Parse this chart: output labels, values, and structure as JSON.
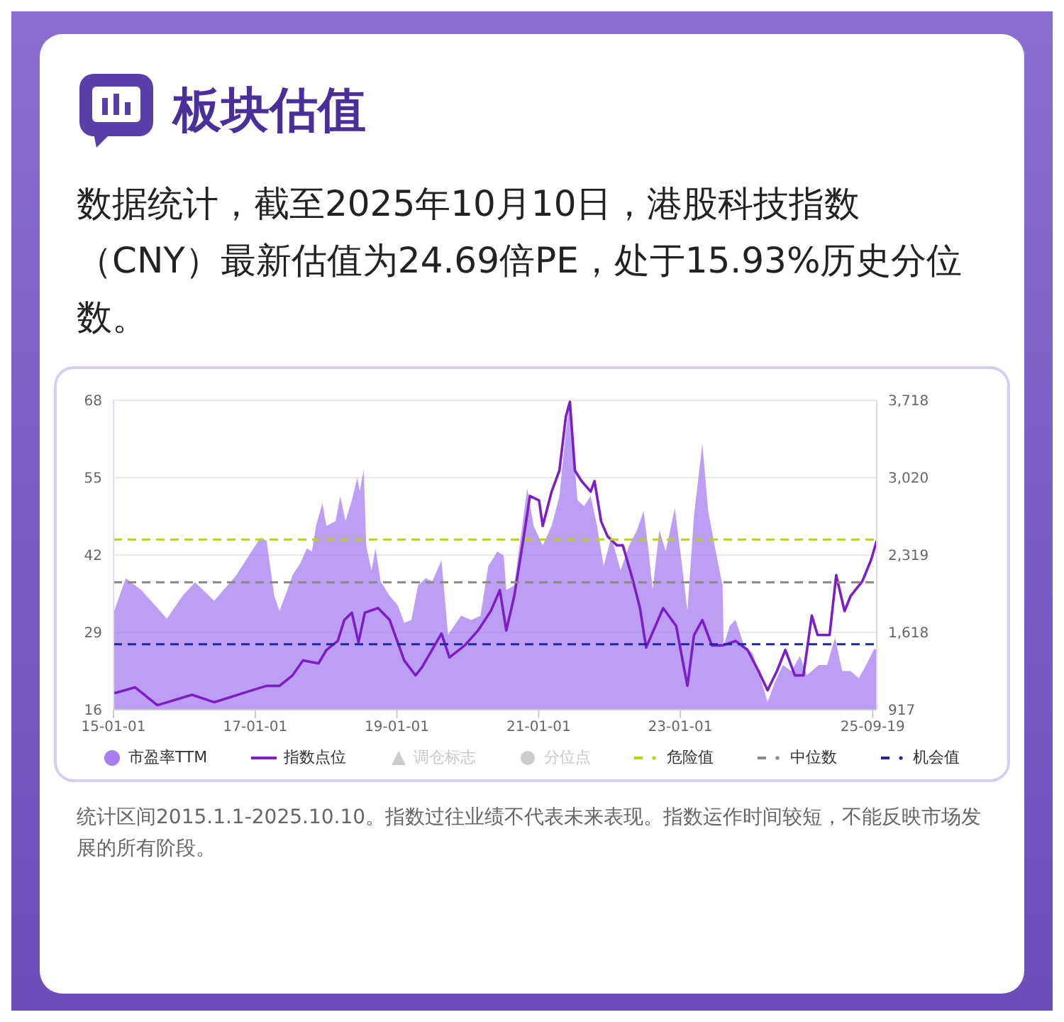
{
  "chart_data": {
    "type": "area",
    "title": "板块估值",
    "subtitle": "数据统计，截至2025年10月10日，港股科技指数（CNY）最新估值为24.69倍PE，处于15.93%历史分位数。",
    "annotations": [
      "统计区间2015.1.1-2025.10.10。指数过往业绩不代表未来表现。指数运作时间较短，不能反映市场发展的所有阶段。"
    ],
    "xlim": [
      "2015-01-01",
      "2025-10-10"
    ],
    "xticks": [
      {
        "value": "2015-01-01",
        "label": "15-01-01"
      },
      {
        "value": "2017-01-01",
        "label": "17-01-01"
      },
      {
        "value": "2019-01-01",
        "label": "19-01-01"
      },
      {
        "value": "2021-01-01",
        "label": "21-01-01"
      },
      {
        "value": "2023-01-01",
        "label": "23-01-01"
      },
      {
        "value": "2025-09-19",
        "label": "25-09-19"
      }
    ],
    "ylim": [
      16,
      68
    ],
    "yticks": [
      16,
      29,
      42,
      55,
      68
    ],
    "y2lim": [
      917,
      3718
    ],
    "y2ticks": [
      917,
      {
        "value": 1618,
        "label": "1,618"
      },
      {
        "value": 2319,
        "label": "2,319"
      },
      {
        "value": 3020,
        "label": "3,020"
      },
      {
        "value": 3718,
        "label": "3,718"
      }
    ],
    "grid": "y",
    "legend": "bottom",
    "series": [
      {
        "name": "市盈率TTM",
        "color": "#a67ff0",
        "x": [
          "2015-01-05",
          "2015-03-05",
          "2015-05-25",
          "2015-08-15",
          "2015-10-03",
          "2015-12-22",
          "2016-02-26",
          "2016-06-03",
          "2016-09-25",
          "2017-01-27",
          "2017-02-28",
          "2017-04-09",
          "2017-05-06",
          "2017-06-15",
          "2017-07-12",
          "2017-08-21",
          "2017-09-24",
          "2017-10-20",
          "2017-11-10",
          "2017-12-13",
          "2018-01-03",
          "2018-02-19",
          "2018-03-15",
          "2018-04-11",
          "2018-05-14",
          "2018-06-11",
          "2018-06-24",
          "2018-07-14",
          "2018-07-27",
          "2018-08-23",
          "2018-09-13",
          "2018-10-09",
          "2018-11-25",
          "2019-01-05",
          "2019-02-08",
          "2019-03-17",
          "2019-04-20",
          "2019-05-30",
          "2019-07-03",
          "2019-08-19",
          "2019-09-22",
          "2019-11-28",
          "2020-01-20",
          "2020-03-07",
          "2020-04-16",
          "2020-06-02",
          "2020-07-05",
          "2020-07-18",
          "2020-08-28",
          "2020-10-01",
          "2020-11-03",
          "2020-12-06",
          "2021-01-22",
          "2021-03-09",
          "2021-04-18",
          "2021-05-21",
          "2021-06-11",
          "2021-06-24",
          "2021-07-20",
          "2021-08-23",
          "2021-09-26",
          "2021-10-29",
          "2021-12-02",
          "2022-01-11",
          "2022-02-27",
          "2022-04-13",
          "2022-05-23",
          "2022-06-26",
          "2022-07-22",
          "2022-08-12",
          "2022-09-15",
          "2022-10-18",
          "2022-12-04",
          "2023-01-07",
          "2023-02-07",
          "2023-03-13",
          "2023-04-25",
          "2023-05-25",
          "2023-07-07",
          "2023-08-07",
          "2023-08-13",
          "2023-09-13",
          "2023-10-13",
          "2023-11-26",
          "2024-01-08",
          "2024-02-14",
          "2024-03-26",
          "2024-05-08",
          "2024-06-14",
          "2024-07-26",
          "2024-09-09",
          "2024-10-15",
          "2024-12-15",
          "2025-01-27",
          "2025-03-09",
          "2025-04-15",
          "2025-05-28",
          "2025-07-10",
          "2025-08-16",
          "2025-09-28",
          "2025-10-10"
        ],
        "values": [
          32.6,
          38.1,
          36.1,
          33.1,
          31.3,
          35.1,
          37.4,
          34.3,
          38.6,
          44.9,
          44.4,
          35.1,
          32.6,
          36.1,
          38.6,
          40.6,
          43.1,
          42.6,
          46.9,
          50.7,
          46.9,
          47.7,
          51.9,
          47.7,
          51.2,
          55,
          52.7,
          56.4,
          43.6,
          39.4,
          43.1,
          37.6,
          35.1,
          33.6,
          30.6,
          31.1,
          36.9,
          38.1,
          37.6,
          41.1,
          28.6,
          31.8,
          31.1,
          31.8,
          40.1,
          42.6,
          41.9,
          36.1,
          36.9,
          45.1,
          53.2,
          46.9,
          43.6,
          46.9,
          51.9,
          62.7,
          67.8,
          62,
          51.2,
          50.2,
          51.9,
          46.9,
          40.1,
          45.1,
          39.4,
          43.6,
          46.2,
          49.4,
          42.6,
          36.1,
          46.2,
          42.6,
          49.9,
          41.1,
          32.6,
          48.7,
          60.7,
          49.4,
          41.9,
          36.9,
          26.8,
          30.1,
          31.1,
          26.8,
          25.5,
          21.8,
          17.3,
          21,
          23.5,
          22.5,
          25,
          21.8,
          23.5,
          23.5,
          28.1,
          22.5,
          22.5,
          21.3,
          23.5,
          26.3,
          26
        ]
      },
      {
        "name": "指数点位",
        "type": "line",
        "axis": "y2",
        "color": "#7b1fc4",
        "x": [
          "2015-01-05",
          "2015-04-22",
          "2015-08-15",
          "2016-02-10",
          "2016-06-03",
          "2016-12-15",
          "2017-02-28",
          "2017-05-06",
          "2017-07-12",
          "2017-09-04",
          "2017-11-23",
          "2018-01-03",
          "2018-03-02",
          "2018-04-05",
          "2018-05-14",
          "2018-06-17",
          "2018-07-20",
          "2018-09-26",
          "2018-11-25",
          "2018-12-28",
          "2019-02-08",
          "2019-04-07",
          "2019-05-10",
          "2019-08-19",
          "2019-09-29",
          "2019-12-17",
          "2020-02-23",
          "2020-04-29",
          "2020-06-15",
          "2020-07-18",
          "2020-08-28",
          "2020-10-13",
          "2020-11-17",
          "2021-01-03",
          "2021-01-22",
          "2021-03-09",
          "2021-04-18",
          "2021-05-21",
          "2021-06-11",
          "2021-07-07",
          "2021-08-10",
          "2021-09-26",
          "2021-10-16",
          "2021-11-19",
          "2021-12-22",
          "2022-02-08",
          "2022-03-11",
          "2022-05-03",
          "2022-06-07",
          "2022-07-09",
          "2022-10-05",
          "2022-12-11",
          "2023-01-13",
          "2023-02-07",
          "2023-03-13",
          "2023-04-25",
          "2023-06-13",
          "2023-08-07",
          "2023-10-13",
          "2023-12-14",
          "2024-02-08",
          "2024-03-26",
          "2024-05-14",
          "2024-06-26",
          "2024-08-14",
          "2024-09-27",
          "2024-11-09",
          "2024-12-09",
          "2025-02-09",
          "2025-03-15",
          "2025-04-27",
          "2025-05-28",
          "2025-07-28",
          "2025-09-10",
          "2025-10-10"
        ],
        "values": [
          1066,
          1120,
          958,
          1052,
          985,
          1093,
          1133,
          1133,
          1228,
          1363,
          1336,
          1458,
          1539,
          1729,
          1796,
          1526,
          1796,
          1837,
          1729,
          1566,
          1363,
          1228,
          1300,
          1607,
          1390,
          1499,
          1634,
          1810,
          2000,
          1634,
          1945,
          2446,
          2852,
          2811,
          2581,
          2892,
          3082,
          3569,
          3704,
          3082,
          2987,
          2892,
          2987,
          2622,
          2487,
          2405,
          2405,
          2081,
          1840,
          1480,
          1837,
          1675,
          1363,
          1133,
          1593,
          1729,
          1499,
          1499,
          1539,
          1458,
          1269,
          1093,
          1269,
          1458,
          1228,
          1228,
          1769,
          1593,
          1593,
          2135,
          1810,
          1945,
          2081,
          2270,
          2446
        ]
      },
      {
        "name": "调仓标志",
        "type": "scatter",
        "marker": "triangle",
        "color": "#cccccc"
      },
      {
        "name": "分位点",
        "type": "scatter",
        "marker": "circle",
        "color": "#cccccc"
      }
    ],
    "ref_lines": [
      {
        "axis": "y",
        "value": 44.6,
        "label": "危险值",
        "color": "#b8d40c",
        "line_style": "dashed"
      },
      {
        "axis": "y",
        "value": 37.4,
        "label": "中位数",
        "color": "#8a8a8a",
        "line_style": "dashed"
      },
      {
        "axis": "y",
        "value": 27,
        "label": "机会值",
        "color": "#1c2a9c",
        "line_style": "dashed"
      }
    ]
  }
}
